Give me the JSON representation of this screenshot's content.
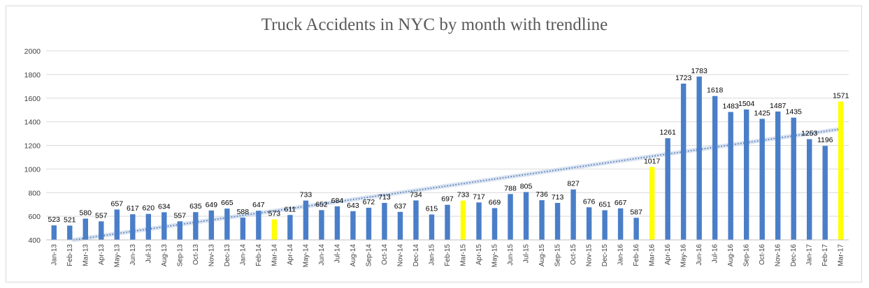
{
  "chart_data": {
    "type": "bar",
    "title": "Truck Accidents in NYC by month with trendline",
    "xlabel": "",
    "ylabel": "",
    "ylim": [
      400,
      2000
    ],
    "yticks": [
      400,
      600,
      800,
      1000,
      1200,
      1400,
      1600,
      1800,
      2000
    ],
    "grid": true,
    "trendline": "linear",
    "categories": [
      "Jan-13",
      "Feb-13",
      "Mar-13",
      "Apr-13",
      "May-13",
      "Jun-13",
      "Jul-13",
      "Aug-13",
      "Sep-13",
      "Oct-13",
      "Nov-13",
      "Dec-13",
      "Jan-14",
      "Feb-14",
      "Mar-14",
      "Apr-14",
      "May-14",
      "Jun-14",
      "Jul-14",
      "Aug-14",
      "Sep-14",
      "Oct-14",
      "Nov-14",
      "Dec-14",
      "Jan-15",
      "Feb-15",
      "Mar-15",
      "Apr-15",
      "May-15",
      "Jun-15",
      "Jul-15",
      "Aug-15",
      "Sep-15",
      "Oct-15",
      "Nov-15",
      "Dec-15",
      "Jan-16",
      "Feb-16",
      "Mar-16",
      "Apr-16",
      "May-16",
      "Jun-16",
      "Jul-16",
      "Aug-16",
      "Sep-16",
      "Oct-16",
      "Nov-16",
      "Dec-16",
      "Jan-17",
      "Feb-17",
      "Mar-17"
    ],
    "values": [
      523,
      521,
      580,
      557,
      657,
      617,
      620,
      634,
      557,
      635,
      649,
      665,
      588,
      647,
      573,
      611,
      733,
      652,
      684,
      643,
      672,
      713,
      637,
      734,
      615,
      697,
      733,
      717,
      669,
      788,
      805,
      736,
      713,
      827,
      676,
      651,
      667,
      587,
      1017,
      1261,
      1723,
      1783,
      1618,
      1483,
      1504,
      1425,
      1487,
      1435,
      1253,
      1196,
      1571
    ],
    "highlighted": [
      "Mar-14",
      "Mar-15",
      "Mar-16",
      "Mar-17"
    ],
    "colors": {
      "bar": "#4a7ec8",
      "highlight": "#ffff00",
      "trend": "#3d6fb0",
      "grid": "#d9d9d9"
    }
  }
}
